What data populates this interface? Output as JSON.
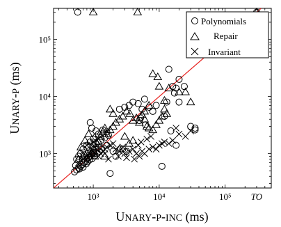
{
  "chart_data": {
    "type": "scatter",
    "xlabel": "Unary-p-inc (ms)",
    "ylabel": "Unary-p (ms)",
    "x_scale": "log",
    "y_scale": "log",
    "xlim": [
      250,
      500000
    ],
    "ylim": [
      250,
      350000
    ],
    "timeout_label": "TO",
    "timeout_value": 300000,
    "x_ticks": [
      {
        "value": 1000,
        "label": "10³"
      },
      {
        "value": 10000,
        "label": "10⁴"
      },
      {
        "value": 100000,
        "label": "10⁵"
      },
      {
        "value": 300000,
        "label": "TO"
      }
    ],
    "y_ticks": [
      {
        "value": 1000,
        "label": "10³"
      },
      {
        "value": 10000,
        "label": "10⁴"
      },
      {
        "value": 100000,
        "label": "10⁵"
      }
    ],
    "diagonal": {
      "color": "#e8221f"
    },
    "legend_position": "top-right",
    "series": [
      {
        "name": "Polynomials",
        "marker": "circle",
        "points": [
          [
            580,
            300000
          ],
          [
            300000,
            300000
          ],
          [
            520,
            480
          ],
          [
            560,
            520
          ],
          [
            600,
            560
          ],
          [
            640,
            600
          ],
          [
            680,
            640
          ],
          [
            720,
            700
          ],
          [
            760,
            740
          ],
          [
            800,
            800
          ],
          [
            850,
            860
          ],
          [
            900,
            900
          ],
          [
            950,
            980
          ],
          [
            1000,
            1050
          ],
          [
            540,
            620
          ],
          [
            620,
            540
          ],
          [
            700,
            580
          ],
          [
            780,
            660
          ],
          [
            820,
            720
          ],
          [
            880,
            780
          ],
          [
            960,
            820
          ],
          [
            1050,
            920
          ],
          [
            1150,
            1000
          ],
          [
            1250,
            1100
          ],
          [
            1350,
            1200
          ],
          [
            600,
            900
          ],
          [
            700,
            1200
          ],
          [
            800,
            1400
          ],
          [
            900,
            1600
          ],
          [
            1000,
            1800
          ],
          [
            1100,
            1500
          ],
          [
            1200,
            1300
          ],
          [
            1300,
            1700
          ],
          [
            1500,
            1900
          ],
          [
            1700,
            2100
          ],
          [
            900,
            3500
          ],
          [
            950,
            2800
          ],
          [
            1100,
            2500
          ],
          [
            1200,
            2200
          ],
          [
            1400,
            2600
          ],
          [
            1600,
            1400
          ],
          [
            1800,
            450
          ],
          [
            2200,
            900
          ],
          [
            2800,
            1200
          ],
          [
            3200,
            1100
          ],
          [
            560,
            800
          ],
          [
            640,
            1000
          ],
          [
            720,
            950
          ],
          [
            860,
            1300
          ],
          [
            1000,
            1400
          ],
          [
            2500,
            6000
          ],
          [
            3000,
            6500
          ],
          [
            3500,
            7000
          ],
          [
            4000,
            8000
          ],
          [
            4800,
            7500
          ],
          [
            5500,
            6000
          ],
          [
            6000,
            9000
          ],
          [
            7000,
            6500
          ],
          [
            8000,
            5500
          ],
          [
            9000,
            7000
          ],
          [
            12000,
            4500
          ],
          [
            15000,
            2500
          ],
          [
            18000,
            1400
          ],
          [
            20000,
            8000
          ],
          [
            14000,
            30000
          ],
          [
            16000,
            15000
          ],
          [
            18000,
            14000
          ],
          [
            20000,
            20000
          ],
          [
            24000,
            15000
          ],
          [
            30000,
            3000
          ],
          [
            35000,
            2800
          ],
          [
            35000,
            2600
          ],
          [
            11000,
            600
          ],
          [
            1100,
            1950
          ],
          [
            1600,
            2400
          ],
          [
            2000,
            1100
          ],
          [
            5000,
            3800
          ],
          [
            5200,
            4200
          ],
          [
            6200,
            3200
          ],
          [
            13000,
            8000
          ],
          [
            17000,
            11500
          ]
        ]
      },
      {
        "name": "Repair",
        "marker": "triangle",
        "points": [
          [
            1000,
            300000
          ],
          [
            4700,
            300000
          ],
          [
            300000,
            300000
          ],
          [
            600,
            800
          ],
          [
            700,
            900
          ],
          [
            800,
            1000
          ],
          [
            900,
            1100
          ],
          [
            1000,
            1200
          ],
          [
            1100,
            1300
          ],
          [
            1200,
            1600
          ],
          [
            1300,
            2000
          ],
          [
            1400,
            2400
          ],
          [
            1500,
            2800
          ],
          [
            650,
            1300
          ],
          [
            750,
            1700
          ],
          [
            850,
            2200
          ],
          [
            950,
            1000
          ],
          [
            1050,
            900
          ],
          [
            1600,
            2200
          ],
          [
            1800,
            2600
          ],
          [
            2000,
            3000
          ],
          [
            2200,
            3500
          ],
          [
            2500,
            4000
          ],
          [
            2800,
            4500
          ],
          [
            3200,
            5500
          ],
          [
            3600,
            5000
          ],
          [
            4000,
            3800
          ],
          [
            4500,
            4200
          ],
          [
            5000,
            3500
          ],
          [
            5500,
            4800
          ],
          [
            6000,
            4000
          ],
          [
            6500,
            3000
          ],
          [
            7000,
            2800
          ],
          [
            8000,
            2600
          ],
          [
            9000,
            3200
          ],
          [
            10000,
            3800
          ],
          [
            11000,
            4500
          ],
          [
            12000,
            6000
          ],
          [
            13000,
            5000
          ],
          [
            14000,
            14000
          ],
          [
            8000,
            25000
          ],
          [
            10000,
            15000
          ],
          [
            12000,
            8500
          ],
          [
            20000,
            12000
          ],
          [
            25000,
            12000
          ],
          [
            30000,
            8000
          ],
          [
            3000,
            2000
          ],
          [
            3500,
            1500
          ],
          [
            4000,
            1700
          ],
          [
            1800,
            6000
          ],
          [
            2000,
            5000
          ],
          [
            1500,
            900
          ],
          [
            2500,
            1200
          ],
          [
            9500,
            22000
          ],
          [
            6000,
            5500
          ],
          [
            7000,
            7000
          ]
        ]
      },
      {
        "name": "Invariant",
        "marker": "cross",
        "points": [
          [
            600,
            700
          ],
          [
            700,
            800
          ],
          [
            800,
            900
          ],
          [
            900,
            1000
          ],
          [
            1000,
            1100
          ],
          [
            1100,
            1200
          ],
          [
            1200,
            900
          ],
          [
            1300,
            1000
          ],
          [
            1400,
            1100
          ],
          [
            1500,
            1200
          ],
          [
            1600,
            1300
          ],
          [
            1800,
            1400
          ],
          [
            2000,
            1500
          ],
          [
            2200,
            1200
          ],
          [
            2500,
            1100
          ],
          [
            2800,
            1300
          ],
          [
            3000,
            1000
          ],
          [
            3500,
            1100
          ],
          [
            4000,
            1200
          ],
          [
            4500,
            1000
          ],
          [
            5000,
            900
          ],
          [
            5500,
            1100
          ],
          [
            6000,
            1000
          ],
          [
            7000,
            1200
          ],
          [
            8000,
            1300
          ],
          [
            9000,
            1200
          ],
          [
            10000,
            1400
          ],
          [
            11000,
            1500
          ],
          [
            12000,
            1600
          ],
          [
            14000,
            1500
          ],
          [
            16000,
            1700
          ],
          [
            18000,
            2800
          ],
          [
            20000,
            2200
          ],
          [
            25000,
            2000
          ],
          [
            30000,
            2500
          ],
          [
            800,
            1400
          ],
          [
            1000,
            1600
          ],
          [
            1200,
            1800
          ],
          [
            1500,
            1000
          ],
          [
            1700,
            800
          ],
          [
            2400,
            900
          ],
          [
            3200,
            850
          ],
          [
            4200,
            800
          ],
          [
            4800,
            1400
          ],
          [
            5300,
            1600
          ],
          [
            6500,
            1800
          ],
          [
            7500,
            2000
          ]
        ]
      }
    ]
  }
}
